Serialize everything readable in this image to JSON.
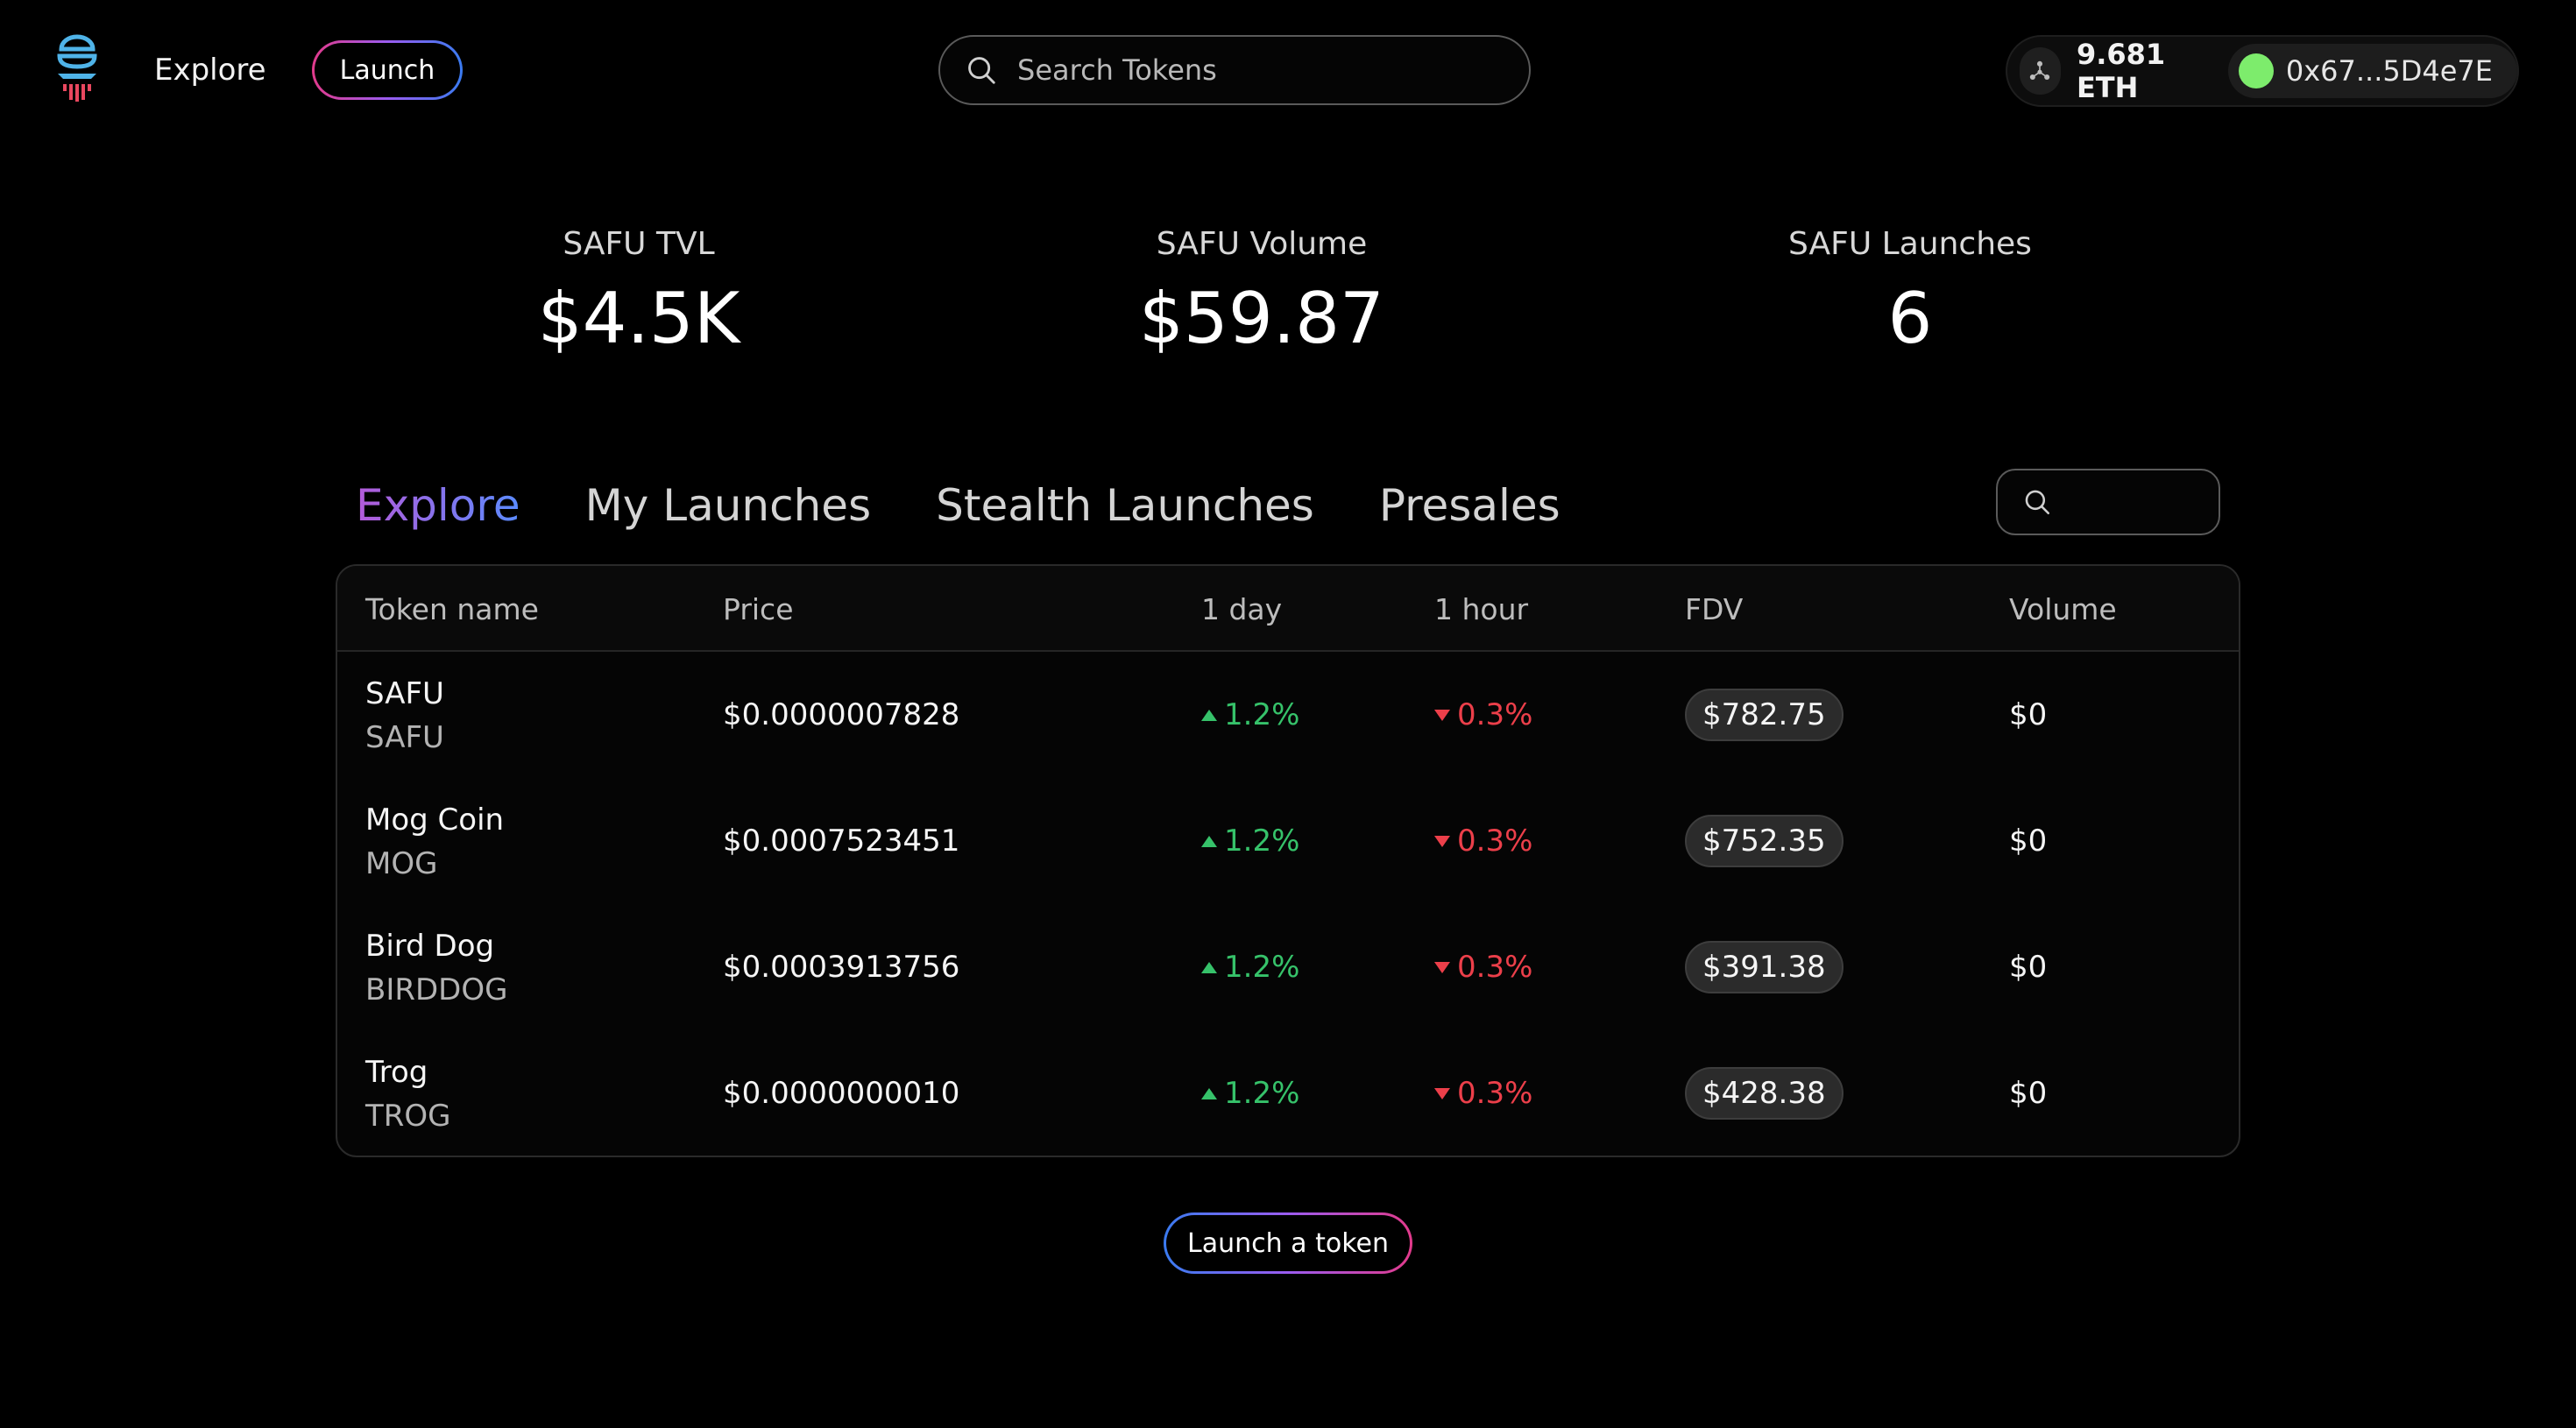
{
  "header": {
    "nav_explore": "Explore",
    "launch_label": "Launch",
    "search_placeholder": "Search Tokens",
    "balance": "9.681 ETH",
    "address": "0x67...5D4e7E"
  },
  "stats": [
    {
      "label": "SAFU TVL",
      "value": "$4.5K"
    },
    {
      "label": "SAFU Volume",
      "value": "$59.87"
    },
    {
      "label": "SAFU Launches",
      "value": "6"
    }
  ],
  "tabs": [
    {
      "label": "Explore",
      "active": true
    },
    {
      "label": "My Launches",
      "active": false
    },
    {
      "label": "Stealth Launches",
      "active": false
    },
    {
      "label": "Presales",
      "active": false
    }
  ],
  "table": {
    "columns": [
      "Token name",
      "Price",
      "1 day",
      "1 hour",
      "FDV",
      "Volume"
    ],
    "rows": [
      {
        "name": "SAFU",
        "symbol": "SAFU",
        "price": "$0.0000007828",
        "day": "1.2%",
        "hour": "0.3%",
        "fdv": "$782.75",
        "volume": "$0"
      },
      {
        "name": "Mog Coin",
        "symbol": "MOG",
        "price": "$0.0007523451",
        "day": "1.2%",
        "hour": "0.3%",
        "fdv": "$752.35",
        "volume": "$0"
      },
      {
        "name": "Bird Dog",
        "symbol": "BIRDDOG",
        "price": "$0.0003913756",
        "day": "1.2%",
        "hour": "0.3%",
        "fdv": "$391.38",
        "volume": "$0"
      },
      {
        "name": "Trog",
        "symbol": "TROG",
        "price": "$0.0000000010",
        "day": "1.2%",
        "hour": "0.3%",
        "fdv": "$428.38",
        "volume": "$0"
      }
    ]
  },
  "footer": {
    "launch_token_label": "Launch a token"
  },
  "colors": {
    "accent_pink": "#e23a8b",
    "accent_blue": "#3a7bf0",
    "positive": "#36c26a",
    "negative": "#ec3f4a",
    "wallet_dot": "#7dec6c"
  },
  "icons": [
    "app-logo-icon",
    "search-icon",
    "network-icon",
    "triangle-up-icon",
    "triangle-down-icon"
  ]
}
